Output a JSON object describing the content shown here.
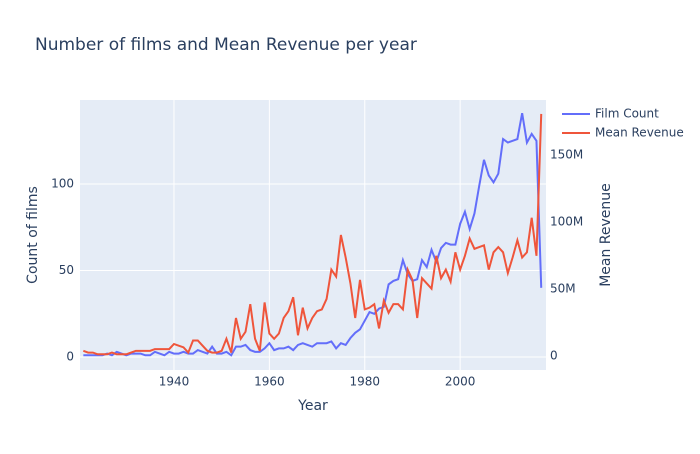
{
  "chart_data": {
    "type": "line",
    "title": "Number of films and Mean Revenue per year",
    "x_label": "Year",
    "y_label": "Count of films",
    "y2_label": "Mean Revenue",
    "x": [
      1921,
      1922,
      1923,
      1924,
      1925,
      1926,
      1927,
      1928,
      1929,
      1930,
      1931,
      1932,
      1933,
      1934,
      1935,
      1936,
      1937,
      1938,
      1939,
      1940,
      1941,
      1942,
      1943,
      1944,
      1945,
      1946,
      1947,
      1948,
      1949,
      1950,
      1951,
      1952,
      1953,
      1954,
      1955,
      1956,
      1957,
      1958,
      1959,
      1960,
      1961,
      1962,
      1963,
      1964,
      1965,
      1966,
      1967,
      1968,
      1969,
      1970,
      1971,
      1972,
      1973,
      1974,
      1975,
      1976,
      1977,
      1978,
      1979,
      1980,
      1981,
      1982,
      1983,
      1984,
      1985,
      1986,
      1987,
      1988,
      1989,
      1990,
      1991,
      1992,
      1993,
      1994,
      1995,
      1996,
      1997,
      1998,
      1999,
      2000,
      2001,
      2002,
      2003,
      2004,
      2005,
      2006,
      2007,
      2008,
      2009,
      2010,
      2011,
      2012,
      2013,
      2014,
      2015,
      2016,
      2017
    ],
    "series": [
      {
        "name": "Film Count",
        "color": "#636efa",
        "axis": "y",
        "values": [
          1,
          1,
          1,
          1,
          1,
          2,
          1,
          3,
          2,
          1,
          2,
          2,
          2,
          1,
          1,
          3,
          2,
          1,
          3,
          2,
          2,
          3,
          2,
          2,
          4,
          3,
          2,
          6,
          2,
          2,
          3,
          1,
          6,
          6,
          7,
          4,
          3,
          3,
          5,
          8,
          4,
          5,
          5,
          6,
          4,
          7,
          8,
          7,
          6,
          8,
          8,
          8,
          9,
          5,
          8,
          7,
          11,
          14,
          16,
          21,
          26,
          25,
          28,
          29,
          42,
          44,
          45,
          56,
          48,
          44,
          45,
          56,
          52,
          62,
          55,
          63,
          66,
          65,
          65,
          77,
          84,
          74,
          83,
          99,
          114,
          105,
          101,
          106,
          126,
          124,
          125,
          126,
          141,
          124,
          129,
          125,
          40
        ]
      },
      {
        "name": "Mean Revenue",
        "color": "#ef553b",
        "axis": "y2",
        "values": [
          3900000,
          2600000,
          2600000,
          1300000,
          1300000,
          1300000,
          2600000,
          1300000,
          1300000,
          1300000,
          2600000,
          3900000,
          3900000,
          3900000,
          3900000,
          5200000,
          5200000,
          5200000,
          5200000,
          9000000,
          7700000,
          6500000,
          2600000,
          11600000,
          11600000,
          7700000,
          3900000,
          2600000,
          2600000,
          3900000,
          12900000,
          2600000,
          28400000,
          12900000,
          18100000,
          38700000,
          12900000,
          3900000,
          40000000,
          16800000,
          12900000,
          16800000,
          28400000,
          33500000,
          43900000,
          15500000,
          36100000,
          20600000,
          28400000,
          33500000,
          34800000,
          42600000,
          64500000,
          59300000,
          90300000,
          73500000,
          54200000,
          28400000,
          56800000,
          34800000,
          36100000,
          38700000,
          20600000,
          41300000,
          32300000,
          38700000,
          38700000,
          34800000,
          64500000,
          56800000,
          28400000,
          58100000,
          54200000,
          50300000,
          74800000,
          58100000,
          64500000,
          55500000,
          77400000,
          64500000,
          74800000,
          87700000,
          80000000,
          81300000,
          82600000,
          64500000,
          77400000,
          81300000,
          77400000,
          61900000,
          73500000,
          86400000,
          73500000,
          77400000,
          103200000,
          74800000,
          180600000
        ]
      }
    ],
    "xlim": [
      1920.3,
      2018
    ],
    "xticks": [
      1940,
      1960,
      1980,
      2000
    ],
    "ylim": [
      -7.5,
      148.6
    ],
    "yticks": [
      0,
      50,
      100
    ],
    "y2lim": [
      -10400000,
      191000000
    ],
    "y2ticks": [
      {
        "value": 0,
        "label": "0"
      },
      {
        "value": 50000000,
        "label": "50M"
      },
      {
        "value": 100000000,
        "label": "100M"
      },
      {
        "value": 150000000,
        "label": "150M"
      }
    ],
    "grid": true,
    "legend": "top-right"
  }
}
